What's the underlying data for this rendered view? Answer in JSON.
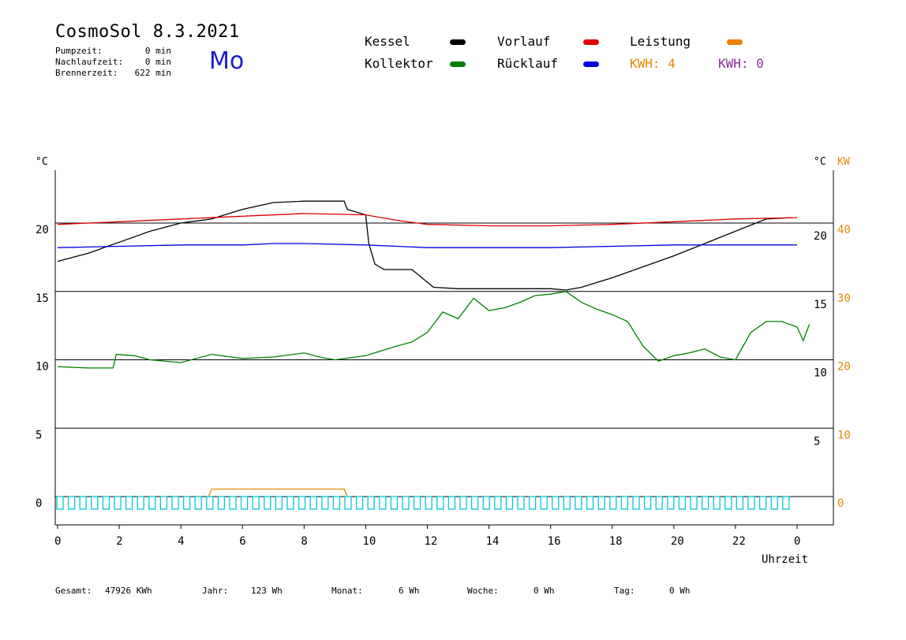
{
  "header": {
    "title": "CosmoSol 8.3.2021",
    "weekday": "Mo",
    "stats": [
      {
        "label": "Pumpzeit:",
        "value": "0 min"
      },
      {
        "label": "Nachlaufzeit:",
        "value": "0 min"
      },
      {
        "label": "Brennerzeit:",
        "value": "622 min"
      }
    ]
  },
  "legend": {
    "items": [
      {
        "label": "Kessel",
        "color": "#000000"
      },
      {
        "label": "Vorlauf",
        "color": "#e00000"
      },
      {
        "label": "Leistung",
        "color": "#f08000"
      },
      {
        "label": "Kollektor",
        "color": "#008000"
      },
      {
        "label": "Rücklauf",
        "color": "#0000e0"
      }
    ],
    "kwh_left": "KWH: 4",
    "kwh_right": "KWH: 0",
    "kwh_left_color": "#e08a00",
    "kwh_right_color": "#8a2a9a"
  },
  "footer": {
    "gesamt_label": "Gesamt:",
    "gesamt_value": "47926 KWh",
    "jahr_label": "Jahr:",
    "jahr_value": "123 Wh",
    "monat_label": "Monat:",
    "monat_value": "6 Wh",
    "woche_label": "Woche:",
    "woche_value": "0 Wh",
    "tag_label": "Tag:",
    "tag_value": "0 Wh"
  },
  "chart_data": {
    "type": "line",
    "xlabel": "Uhrzeit",
    "ylabel_left": "°C",
    "ylabel_right_temp": "°C",
    "ylabel_right_power": "KW",
    "xlim": [
      0,
      24
    ],
    "ylim": [
      -2,
      24
    ],
    "x_tick_labels": [
      "0",
      "2",
      "4",
      "6",
      "8",
      "10",
      "12",
      "14",
      "16",
      "18",
      "20",
      "22",
      "0"
    ],
    "y_left_ticks": [
      0,
      5,
      10,
      15,
      20
    ],
    "y_right_temp_ticks": [
      5,
      10,
      15,
      20
    ],
    "y_right_power_ticks": [
      0,
      10,
      20,
      30,
      40
    ],
    "grid": "horizontal",
    "series": [
      {
        "name": "Kessel",
        "color": "#000000",
        "points": [
          [
            0,
            17.2
          ],
          [
            1,
            17.8
          ],
          [
            2,
            18.6
          ],
          [
            3,
            19.4
          ],
          [
            4,
            20.0
          ],
          [
            5,
            20.3
          ],
          [
            6,
            21.0
          ],
          [
            7,
            21.5
          ],
          [
            8,
            21.6
          ],
          [
            9,
            21.6
          ],
          [
            9.3,
            21.6
          ],
          [
            9.4,
            21.0
          ],
          [
            10.0,
            20.6
          ],
          [
            10.1,
            18.5
          ],
          [
            10.3,
            17.0
          ],
          [
            10.6,
            16.6
          ],
          [
            11.5,
            16.6
          ],
          [
            12.2,
            15.3
          ],
          [
            13,
            15.2
          ],
          [
            14,
            15.2
          ],
          [
            15,
            15.2
          ],
          [
            16,
            15.2
          ],
          [
            16.5,
            15.1
          ],
          [
            17,
            15.3
          ],
          [
            18,
            16.0
          ],
          [
            19,
            16.8
          ],
          [
            20,
            17.6
          ],
          [
            21,
            18.5
          ],
          [
            22,
            19.4
          ],
          [
            23,
            20.3
          ],
          [
            23.8,
            20.4
          ]
        ]
      },
      {
        "name": "Vorlauf",
        "color": "#e00000",
        "points": [
          [
            0,
            19.9
          ],
          [
            2,
            20.1
          ],
          [
            4,
            20.3
          ],
          [
            6,
            20.5
          ],
          [
            8,
            20.7
          ],
          [
            10,
            20.6
          ],
          [
            11,
            20.2
          ],
          [
            12,
            19.9
          ],
          [
            14,
            19.8
          ],
          [
            16,
            19.8
          ],
          [
            18,
            19.9
          ],
          [
            20,
            20.1
          ],
          [
            22,
            20.3
          ],
          [
            24,
            20.4
          ]
        ]
      },
      {
        "name": "Rücklauf",
        "color": "#0000e0",
        "points": [
          [
            0,
            18.2
          ],
          [
            2,
            18.3
          ],
          [
            4,
            18.4
          ],
          [
            6,
            18.4
          ],
          [
            7,
            18.5
          ],
          [
            8,
            18.5
          ],
          [
            10,
            18.4
          ],
          [
            12,
            18.2
          ],
          [
            14,
            18.2
          ],
          [
            16,
            18.2
          ],
          [
            18,
            18.3
          ],
          [
            20,
            18.4
          ],
          [
            22,
            18.4
          ],
          [
            24,
            18.4
          ]
        ]
      },
      {
        "name": "Kollektor",
        "color": "#008000",
        "points": [
          [
            0,
            9.5
          ],
          [
            1,
            9.4
          ],
          [
            1.8,
            9.4
          ],
          [
            1.9,
            10.4
          ],
          [
            2.5,
            10.3
          ],
          [
            3,
            10.0
          ],
          [
            4,
            9.8
          ],
          [
            5,
            10.4
          ],
          [
            6,
            10.1
          ],
          [
            7,
            10.2
          ],
          [
            8,
            10.5
          ],
          [
            8.5,
            10.2
          ],
          [
            9,
            10.0
          ],
          [
            10,
            10.3
          ],
          [
            11,
            11.0
          ],
          [
            11.5,
            11.3
          ],
          [
            12,
            12.0
          ],
          [
            12.5,
            13.5
          ],
          [
            13,
            13.0
          ],
          [
            13.5,
            14.5
          ],
          [
            14,
            13.6
          ],
          [
            14.5,
            13.8
          ],
          [
            15,
            14.2
          ],
          [
            15.5,
            14.7
          ],
          [
            16,
            14.8
          ],
          [
            16.5,
            15.0
          ],
          [
            17,
            14.2
          ],
          [
            17.5,
            13.7
          ],
          [
            18,
            13.3
          ],
          [
            18.5,
            12.8
          ],
          [
            19,
            11.0
          ],
          [
            19.5,
            9.9
          ],
          [
            20,
            10.3
          ],
          [
            20.5,
            10.5
          ],
          [
            21,
            10.8
          ],
          [
            21.5,
            10.2
          ],
          [
            22,
            10.0
          ],
          [
            22.5,
            12.0
          ],
          [
            23,
            12.8
          ],
          [
            23.5,
            12.8
          ],
          [
            24,
            12.4
          ],
          [
            24.2,
            11.4
          ],
          [
            24.4,
            12.6
          ]
        ]
      },
      {
        "name": "Leistung",
        "color": "#e08a00",
        "points": [
          [
            4.9,
            0
          ],
          [
            5.0,
            0.55
          ],
          [
            9.3,
            0.55
          ],
          [
            9.4,
            0
          ]
        ]
      }
    ]
  }
}
